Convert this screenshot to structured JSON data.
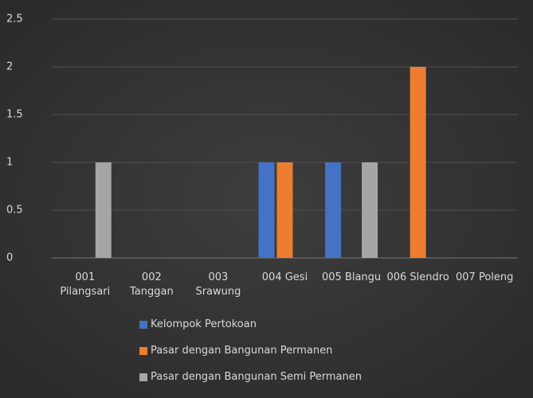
{
  "chart_data": {
    "type": "bar",
    "categories": [
      "001 Pilangsari",
      "002 Tanggan",
      "003 Srawung",
      "004 Gesi",
      "005 Blangu",
      "006 Slendro",
      "007 Poleng"
    ],
    "series": [
      {
        "name": "Kelompok Pertokoan",
        "color": "#4472c4",
        "values": [
          0,
          0,
          0,
          1,
          1,
          0,
          0
        ]
      },
      {
        "name": "Pasar dengan Bangunan Permanen",
        "color": "#ed7d31",
        "values": [
          0,
          0,
          0,
          1,
          0,
          2,
          0
        ]
      },
      {
        "name": "Pasar dengan Bangunan Semi Permanen",
        "color": "#a5a5a5",
        "values": [
          1,
          0,
          0,
          0,
          1,
          0,
          0
        ]
      }
    ],
    "ylim": [
      0,
      2.5
    ],
    "yticks": [
      0,
      0.5,
      1,
      1.5,
      2,
      2.5
    ],
    "grid": true,
    "legend": "bottom"
  }
}
